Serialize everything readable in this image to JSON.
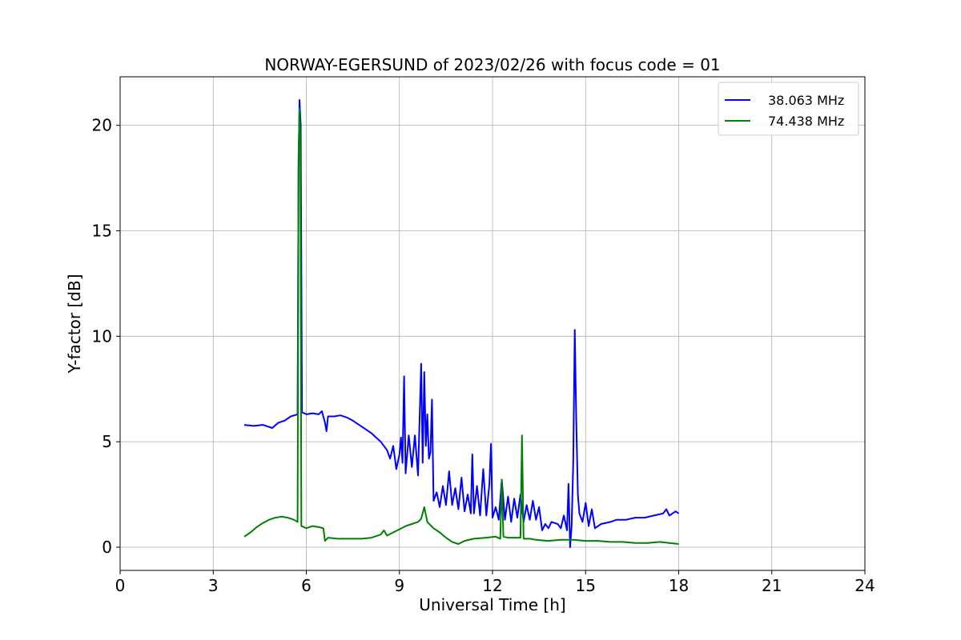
{
  "chart_data": {
    "type": "line",
    "title": "NORWAY-EGERSUND of 2023/02/26 with focus code = 01",
    "xlabel": "Universal Time [h]",
    "ylabel": "Y-factor [dB]",
    "xlim": [
      0,
      24
    ],
    "ylim": [
      -1.1,
      22.3
    ],
    "xticks": [
      0,
      3,
      6,
      9,
      12,
      15,
      18,
      21,
      24
    ],
    "yticks": [
      0,
      5,
      10,
      15,
      20
    ],
    "grid": true,
    "legend_position": "top-right",
    "series": [
      {
        "name": "38.063 MHz",
        "color": "#0000ff",
        "points": [
          [
            4.0,
            5.8
          ],
          [
            4.3,
            5.75
          ],
          [
            4.6,
            5.8
          ],
          [
            4.9,
            5.65
          ],
          [
            5.1,
            5.9
          ],
          [
            5.3,
            6.0
          ],
          [
            5.5,
            6.2
          ],
          [
            5.72,
            6.3
          ],
          [
            5.75,
            18.0
          ],
          [
            5.78,
            21.2
          ],
          [
            5.82,
            20.0
          ],
          [
            5.86,
            6.4
          ],
          [
            6.0,
            6.3
          ],
          [
            6.2,
            6.35
          ],
          [
            6.4,
            6.3
          ],
          [
            6.5,
            6.45
          ],
          [
            6.6,
            5.9
          ],
          [
            6.65,
            5.5
          ],
          [
            6.7,
            6.2
          ],
          [
            6.9,
            6.2
          ],
          [
            7.1,
            6.25
          ],
          [
            7.3,
            6.15
          ],
          [
            7.5,
            6.0
          ],
          [
            7.8,
            5.7
          ],
          [
            8.1,
            5.4
          ],
          [
            8.4,
            5.0
          ],
          [
            8.6,
            4.6
          ],
          [
            8.7,
            4.2
          ],
          [
            8.8,
            4.8
          ],
          [
            8.9,
            3.7
          ],
          [
            9.0,
            4.4
          ],
          [
            9.05,
            5.2
          ],
          [
            9.1,
            4.0
          ],
          [
            9.15,
            8.1
          ],
          [
            9.2,
            3.5
          ],
          [
            9.3,
            5.3
          ],
          [
            9.4,
            3.8
          ],
          [
            9.5,
            5.3
          ],
          [
            9.6,
            3.4
          ],
          [
            9.65,
            6.0
          ],
          [
            9.7,
            8.7
          ],
          [
            9.75,
            4.0
          ],
          [
            9.8,
            8.3
          ],
          [
            9.85,
            4.8
          ],
          [
            9.9,
            6.3
          ],
          [
            9.95,
            4.2
          ],
          [
            10.0,
            4.5
          ],
          [
            10.05,
            7.0
          ],
          [
            10.1,
            2.2
          ],
          [
            10.2,
            2.6
          ],
          [
            10.3,
            1.9
          ],
          [
            10.4,
            2.9
          ],
          [
            10.5,
            2.0
          ],
          [
            10.6,
            3.6
          ],
          [
            10.7,
            2.0
          ],
          [
            10.8,
            2.8
          ],
          [
            10.9,
            1.8
          ],
          [
            11.0,
            3.3
          ],
          [
            11.1,
            1.7
          ],
          [
            11.2,
            2.5
          ],
          [
            11.3,
            1.6
          ],
          [
            11.35,
            4.4
          ],
          [
            11.4,
            1.6
          ],
          [
            11.5,
            2.9
          ],
          [
            11.6,
            1.5
          ],
          [
            11.7,
            3.7
          ],
          [
            11.8,
            1.5
          ],
          [
            11.9,
            3.0
          ],
          [
            11.95,
            4.9
          ],
          [
            12.0,
            1.4
          ],
          [
            12.1,
            1.9
          ],
          [
            12.2,
            1.3
          ],
          [
            12.3,
            3.2
          ],
          [
            12.4,
            1.3
          ],
          [
            12.5,
            2.4
          ],
          [
            12.6,
            1.2
          ],
          [
            12.7,
            2.3
          ],
          [
            12.8,
            1.4
          ],
          [
            12.9,
            2.5
          ],
          [
            13.0,
            1.2
          ],
          [
            13.1,
            2.0
          ],
          [
            13.2,
            1.3
          ],
          [
            13.3,
            2.2
          ],
          [
            13.4,
            1.3
          ],
          [
            13.5,
            1.9
          ],
          [
            13.6,
            0.8
          ],
          [
            13.7,
            1.1
          ],
          [
            13.8,
            0.9
          ],
          [
            13.9,
            1.2
          ],
          [
            14.1,
            1.1
          ],
          [
            14.2,
            0.9
          ],
          [
            14.3,
            1.5
          ],
          [
            14.4,
            0.8
          ],
          [
            14.45,
            3.0
          ],
          [
            14.5,
            0.0
          ],
          [
            14.55,
            1.0
          ],
          [
            14.6,
            4.0
          ],
          [
            14.65,
            10.3
          ],
          [
            14.7,
            6.0
          ],
          [
            14.75,
            2.5
          ],
          [
            14.8,
            1.6
          ],
          [
            14.9,
            1.2
          ],
          [
            15.0,
            2.1
          ],
          [
            15.1,
            1.0
          ],
          [
            15.2,
            1.8
          ],
          [
            15.3,
            0.9
          ],
          [
            15.5,
            1.1
          ],
          [
            15.8,
            1.2
          ],
          [
            16.0,
            1.3
          ],
          [
            16.3,
            1.3
          ],
          [
            16.6,
            1.4
          ],
          [
            16.9,
            1.4
          ],
          [
            17.2,
            1.5
          ],
          [
            17.5,
            1.6
          ],
          [
            17.6,
            1.8
          ],
          [
            17.7,
            1.5
          ],
          [
            17.8,
            1.6
          ],
          [
            17.9,
            1.7
          ],
          [
            18.0,
            1.6
          ]
        ]
      },
      {
        "name": "74.438 MHz",
        "color": "#008000",
        "points": [
          [
            4.0,
            0.5
          ],
          [
            4.2,
            0.7
          ],
          [
            4.4,
            0.95
          ],
          [
            4.6,
            1.15
          ],
          [
            4.8,
            1.3
          ],
          [
            5.0,
            1.4
          ],
          [
            5.2,
            1.45
          ],
          [
            5.4,
            1.4
          ],
          [
            5.6,
            1.3
          ],
          [
            5.72,
            1.2
          ],
          [
            5.75,
            18.5
          ],
          [
            5.78,
            20.8
          ],
          [
            5.81,
            19.0
          ],
          [
            5.84,
            1.0
          ],
          [
            6.0,
            0.9
          ],
          [
            6.2,
            1.0
          ],
          [
            6.4,
            0.95
          ],
          [
            6.55,
            0.9
          ],
          [
            6.6,
            0.3
          ],
          [
            6.7,
            0.45
          ],
          [
            7.0,
            0.4
          ],
          [
            7.4,
            0.4
          ],
          [
            7.8,
            0.4
          ],
          [
            8.1,
            0.45
          ],
          [
            8.4,
            0.6
          ],
          [
            8.5,
            0.8
          ],
          [
            8.6,
            0.55
          ],
          [
            8.8,
            0.7
          ],
          [
            9.0,
            0.85
          ],
          [
            9.2,
            1.0
          ],
          [
            9.4,
            1.1
          ],
          [
            9.6,
            1.2
          ],
          [
            9.7,
            1.35
          ],
          [
            9.8,
            1.9
          ],
          [
            9.9,
            1.2
          ],
          [
            10.1,
            0.9
          ],
          [
            10.3,
            0.7
          ],
          [
            10.5,
            0.45
          ],
          [
            10.7,
            0.25
          ],
          [
            10.9,
            0.15
          ],
          [
            11.1,
            0.3
          ],
          [
            11.4,
            0.4
          ],
          [
            11.8,
            0.45
          ],
          [
            12.1,
            0.5
          ],
          [
            12.25,
            0.4
          ],
          [
            12.3,
            3.2
          ],
          [
            12.35,
            0.5
          ],
          [
            12.5,
            0.45
          ],
          [
            12.9,
            0.45
          ],
          [
            12.95,
            5.3
          ],
          [
            13.0,
            0.4
          ],
          [
            13.2,
            0.4
          ],
          [
            13.4,
            0.35
          ],
          [
            13.8,
            0.3
          ],
          [
            14.2,
            0.35
          ],
          [
            14.6,
            0.35
          ],
          [
            15.0,
            0.3
          ],
          [
            15.4,
            0.3
          ],
          [
            15.8,
            0.25
          ],
          [
            16.2,
            0.25
          ],
          [
            16.6,
            0.2
          ],
          [
            17.0,
            0.2
          ],
          [
            17.4,
            0.25
          ],
          [
            17.7,
            0.2
          ],
          [
            18.0,
            0.15
          ]
        ]
      }
    ]
  }
}
